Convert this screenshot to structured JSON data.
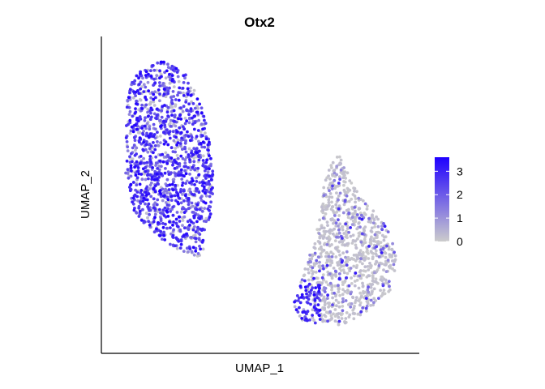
{
  "chart_data": {
    "type": "scatter",
    "title": "Otx2",
    "xlabel": "UMAP_1",
    "ylabel": "UMAP_2",
    "show_axis_ticks": false,
    "grid": false,
    "color_scale": {
      "low_color": "#cccccc",
      "high_color": "#1f00ff",
      "min": 0,
      "max": 3.6,
      "ticks": [
        "0",
        "1",
        "2",
        "3"
      ]
    },
    "legend_position": "right",
    "clusters": [
      {
        "description": "left cluster, high expression",
        "x_range": [
          -6,
          -2
        ],
        "y_range": [
          -4,
          8
        ],
        "mean_expression_range": [
          0,
          3.6
        ]
      },
      {
        "description": "right cluster, mostly low expression with expressing tip at lower-left",
        "x_range": [
          4,
          8
        ],
        "y_range": [
          -10,
          2
        ],
        "mean_expression_range": [
          0,
          3
        ]
      }
    ]
  }
}
